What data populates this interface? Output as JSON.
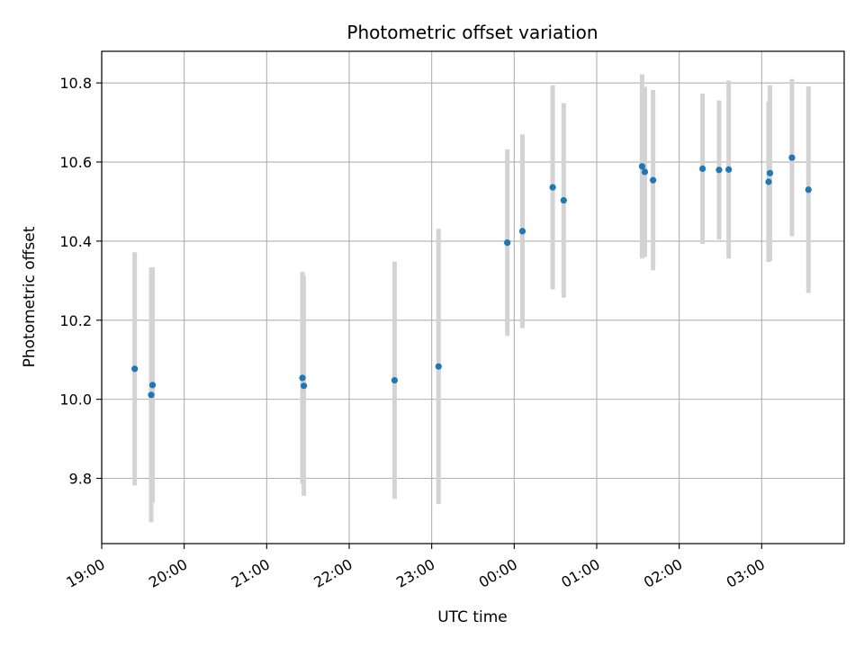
{
  "chart_data": {
    "type": "scatter",
    "title": "Photometric offset variation",
    "xlabel": "UTC time",
    "ylabel": "Photometric offset",
    "grid": true,
    "xlim": [
      "19:00",
      "04:00"
    ],
    "ylim": [
      9.635,
      10.88
    ],
    "x_ticks": [
      "19:00",
      "20:00",
      "21:00",
      "22:00",
      "23:00",
      "00:00",
      "01:00",
      "02:00",
      "03:00"
    ],
    "y_ticks": [
      9.8,
      10.0,
      10.2,
      10.4,
      10.6,
      10.8
    ],
    "y_tick_labels": [
      "9.8",
      "10.0",
      "10.2",
      "10.4",
      "10.6",
      "10.8"
    ],
    "colors": {
      "point": "#1f77b4",
      "errorbar": "#d3d3d3",
      "grid": "#b0b0b0"
    },
    "points": [
      {
        "time": "19:24",
        "y": 10.077,
        "yerr": 0.295
      },
      {
        "time": "19:36",
        "y": 10.011,
        "yerr": 0.322
      },
      {
        "time": "19:37",
        "y": 10.036,
        "yerr": 0.298
      },
      {
        "time": "21:26",
        "y": 10.054,
        "yerr": 0.268
      },
      {
        "time": "21:27",
        "y": 10.034,
        "yerr": 0.278
      },
      {
        "time": "22:33",
        "y": 10.048,
        "yerr": 0.3
      },
      {
        "time": "23:05",
        "y": 10.083,
        "yerr": 0.348
      },
      {
        "time": "23:55",
        "y": 10.396,
        "yerr": 0.236
      },
      {
        "time": "00:06",
        "y": 10.425,
        "yerr": 0.245
      },
      {
        "time": "00:28",
        "y": 10.536,
        "yerr": 0.258
      },
      {
        "time": "00:36",
        "y": 10.503,
        "yerr": 0.246
      },
      {
        "time": "01:33",
        "y": 10.589,
        "yerr": 0.233
      },
      {
        "time": "01:35",
        "y": 10.575,
        "yerr": 0.215
      },
      {
        "time": "01:41",
        "y": 10.554,
        "yerr": 0.228
      },
      {
        "time": "02:17",
        "y": 10.583,
        "yerr": 0.19
      },
      {
        "time": "02:29",
        "y": 10.58,
        "yerr": 0.176
      },
      {
        "time": "02:36",
        "y": 10.581,
        "yerr": 0.225
      },
      {
        "time": "03:05",
        "y": 10.55,
        "yerr": 0.203
      },
      {
        "time": "03:06",
        "y": 10.572,
        "yerr": 0.222
      },
      {
        "time": "03:22",
        "y": 10.611,
        "yerr": 0.199
      },
      {
        "time": "03:34",
        "y": 10.53,
        "yerr": 0.261
      }
    ]
  }
}
